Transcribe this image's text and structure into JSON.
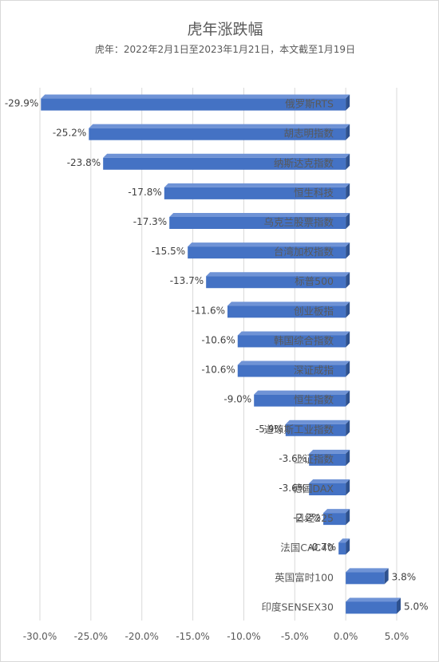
{
  "chart_data": {
    "type": "bar",
    "orientation": "horizontal",
    "title": "虎年涨跌幅",
    "subtitle": "虎年：2022年2月1日至2023年1月21日，本文截至1月19日",
    "categories": [
      "俄罗斯RTS",
      "胡志明指数",
      "纳斯达克指数",
      "恒生科技",
      "乌克兰股票指数",
      "台湾加权指数",
      "标普500",
      "创业板指",
      "韩国综合指数",
      "深证成指",
      "恒生指数",
      "道琼斯工业指数",
      "上证指数",
      "德国DAX",
      "日经225",
      "法国CAC40",
      "英国富时100",
      "印度SENSEX30"
    ],
    "values": [
      -29.9,
      -25.2,
      -23.8,
      -17.8,
      -17.3,
      -15.5,
      -13.7,
      -11.6,
      -10.6,
      -10.6,
      -9.0,
      -5.9,
      -3.6,
      -3.6,
      -2.2,
      -0.7,
      3.8,
      5.0
    ],
    "data_labels": [
      "-29.9%",
      "-25.2%",
      "-23.8%",
      "-17.8%",
      "-17.3%",
      "-15.5%",
      "-13.7%",
      "-11.6%",
      "-10.6%",
      "-10.6%",
      "-9.0%",
      "-5.9%",
      "-3.6%",
      "-3.6%",
      "-2.2%",
      "-0.7%",
      "3.8%",
      "5.0%"
    ],
    "xlim": [
      -30,
      5
    ],
    "x_ticks": [
      -30,
      -25,
      -20,
      -15,
      -10,
      -5,
      0,
      5
    ],
    "x_tick_labels": [
      "-30.0%",
      "-25.0%",
      "-20.0%",
      "-15.0%",
      "-10.0%",
      "-5.0%",
      "0.0%",
      "5.0%"
    ],
    "grid": true,
    "bar_color": "#4472C4",
    "bar_top_color": "#6F93D6",
    "bar_side_color": "#2F528F"
  }
}
